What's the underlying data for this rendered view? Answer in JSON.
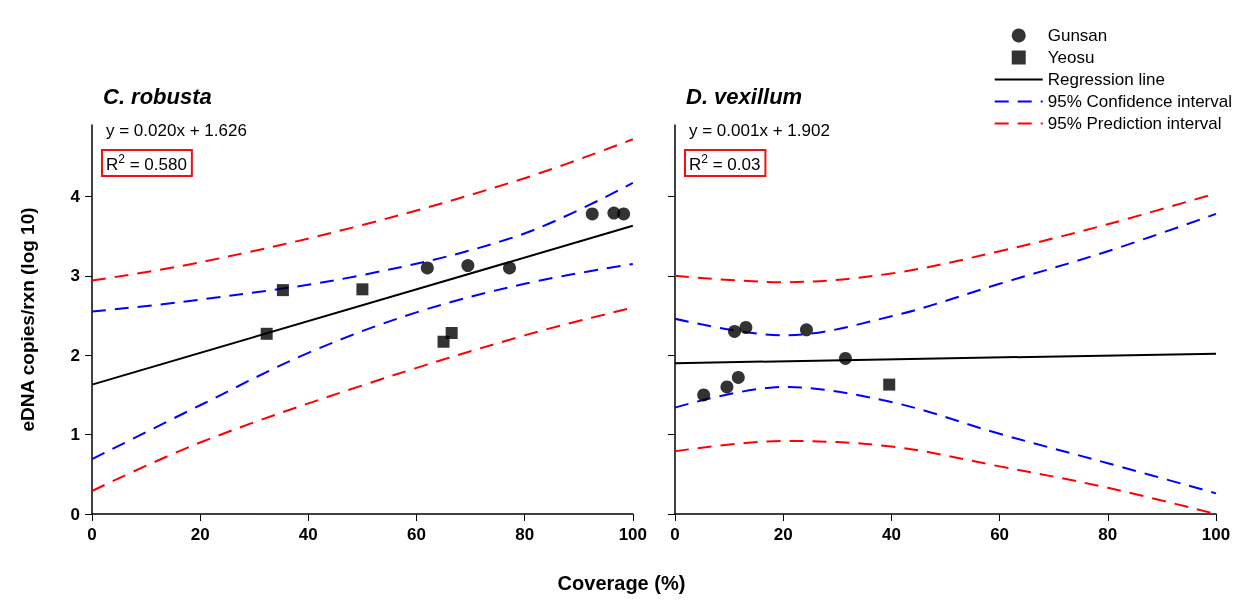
{
  "chart_data": [
    {
      "type": "scatter",
      "title": "C. robusta",
      "xlabel": "Coverage (%)",
      "ylabel": "eDNA copies/rxn (log 10)",
      "xlim": [
        0,
        100
      ],
      "xticks": [
        0,
        20,
        40,
        60,
        80,
        100
      ],
      "ylim": [
        0,
        4.9
      ],
      "yticks": [
        0,
        1,
        2,
        3,
        4
      ],
      "grid": false,
      "legend": false,
      "annotations": [
        "y = 0.020x + 1.626",
        "R$^{2}$ = 0.580"
      ],
      "series": [
        {
          "marker": "circle",
          "color": "#000000",
          "x": [
            62,
            69.5,
            77.2,
            92.5,
            96.5,
            98.3
          ],
          "values": [
            3.1,
            3.13,
            3.1,
            3.78,
            3.79,
            3.78
          ]
        },
        {
          "marker": "square",
          "color": "#000000",
          "x": [
            32.3,
            35.3,
            50,
            65,
            66.5
          ],
          "values": [
            2.27,
            2.82,
            2.83,
            2.17,
            2.28
          ]
        },
        {
          "type": "line",
          "marker": "none",
          "line_style": "solid",
          "color": "#000000",
          "x": [
            0,
            100
          ],
          "values": [
            1.63,
            3.63
          ]
        },
        {
          "type": "line",
          "marker": "none",
          "line_style": "dashed",
          "color": "#0000ff",
          "x": [
            0,
            20,
            50,
            79,
            100
          ],
          "values": [
            2.55,
            2.7,
            3.01,
            3.51,
            4.17
          ]
        },
        {
          "type": "line",
          "marker": "none",
          "line_style": "dashed",
          "color": "#0000ff",
          "x": [
            0,
            20,
            40,
            60,
            80,
            100
          ],
          "values": [
            0.69,
            1.37,
            2.03,
            2.54,
            2.9,
            3.15
          ]
        },
        {
          "type": "line",
          "marker": "none",
          "line_style": "dashed",
          "color": "#ff0000",
          "x": [
            0,
            20,
            50,
            80,
            100
          ],
          "values": [
            2.94,
            3.17,
            3.64,
            4.23,
            4.72
          ]
        },
        {
          "type": "line",
          "marker": "none",
          "line_style": "dashed",
          "color": "#ff0000",
          "x": [
            0,
            20,
            50,
            80,
            100
          ],
          "values": [
            0.29,
            0.9,
            1.62,
            2.25,
            2.6
          ]
        }
      ]
    },
    {
      "type": "scatter",
      "title": "D. vexillum",
      "xlim": [
        0,
        100
      ],
      "xticks": [
        0,
        20,
        40,
        60,
        80,
        100
      ],
      "ylim": [
        0,
        4.9
      ],
      "yticks": [
        0,
        1,
        2,
        3,
        4
      ],
      "tick_labels": "x",
      "grid": false,
      "legend": "top right",
      "annotations": [
        "y = 0.001x + 1.902",
        "R$^{2}$ = 0.03"
      ],
      "series": [
        {
          "name": "Gunsan",
          "marker": "circle",
          "color": "#000000",
          "x": [
            5.3,
            9.6,
            11,
            11.7,
            13.1,
            24.3,
            31.5
          ],
          "values": [
            1.5,
            1.6,
            2.3,
            1.72,
            2.35,
            2.32,
            1.96
          ]
        },
        {
          "name": "Yeosu",
          "marker": "square",
          "color": "#000000",
          "x": [
            39.6
          ],
          "values": [
            1.63
          ]
        },
        {
          "name": "Regression line",
          "type": "line",
          "marker": "none",
          "line_style": "solid",
          "color": "#000000",
          "x": [
            0,
            100
          ],
          "values": [
            1.9,
            2.02
          ]
        },
        {
          "name": "95% Confidence interval",
          "type": "line",
          "marker": "none",
          "line_style": "dashed",
          "color": "#0000ff",
          "x": [
            0,
            20,
            40,
            60,
            80,
            100
          ],
          "values": [
            2.46,
            2.25,
            2.49,
            2.9,
            3.31,
            3.78
          ]
        },
        {
          "type": "line",
          "marker": "none",
          "line_style": "dashed",
          "color": "#0000ff",
          "x": [
            0,
            20,
            40,
            60,
            80,
            100
          ],
          "values": [
            1.34,
            1.6,
            1.41,
            1.01,
            0.64,
            0.26
          ]
        },
        {
          "name": "95% Prediction interval",
          "type": "line",
          "marker": "none",
          "line_style": "dashed",
          "color": "#ff0000",
          "x": [
            0,
            20,
            40,
            60,
            80,
            100
          ],
          "values": [
            3.0,
            2.92,
            3.03,
            3.31,
            3.65,
            4.04
          ]
        },
        {
          "type": "line",
          "marker": "none",
          "line_style": "dashed",
          "color": "#ff0000",
          "x": [
            0,
            20,
            40,
            60,
            80,
            100
          ],
          "values": [
            0.79,
            0.92,
            0.85,
            0.6,
            0.33,
            0.0
          ]
        }
      ]
    }
  ]
}
